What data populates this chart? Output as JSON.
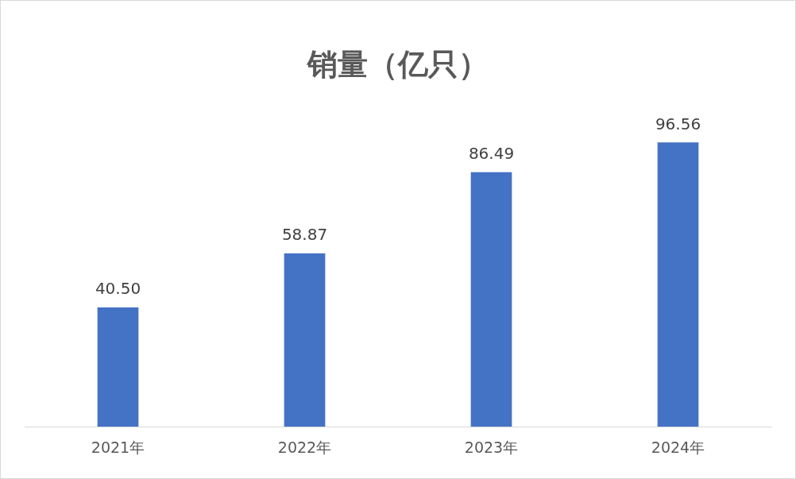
{
  "chart_data": {
    "type": "bar",
    "title": "销量（亿只）",
    "categories": [
      "2021年",
      "2022年",
      "2023年",
      "2024年"
    ],
    "values": [
      40.5,
      58.87,
      86.49,
      96.56
    ],
    "value_labels": [
      "40.50",
      "58.87",
      "86.49",
      "96.56"
    ],
    "color": "#4472c4",
    "grid": false,
    "legend": false
  }
}
